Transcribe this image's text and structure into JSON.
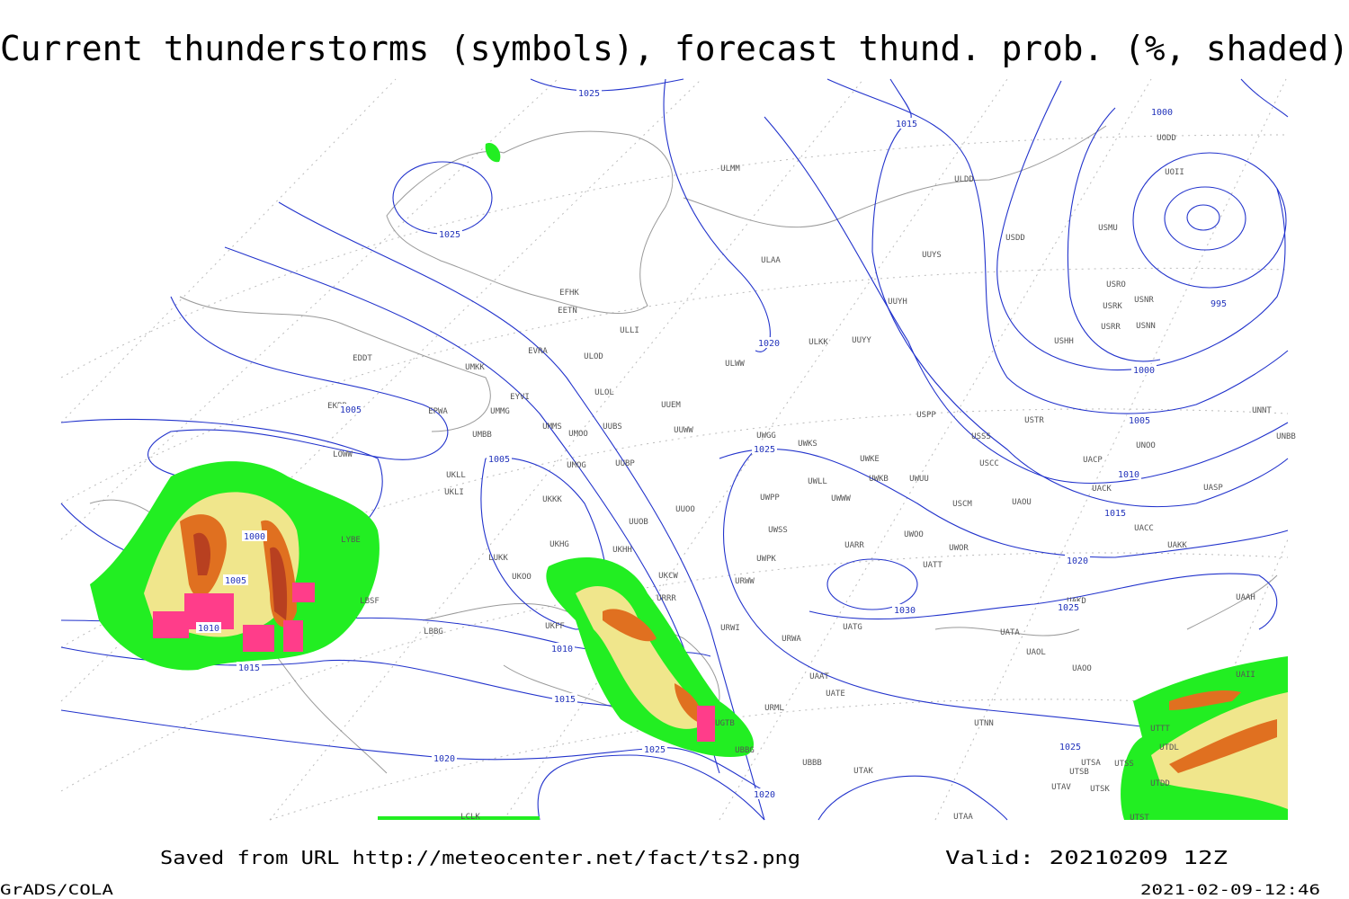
{
  "header": {
    "title": "Current thunderstorms (symbols), forecast thund. prob. (%, shaded)"
  },
  "isobar_labels": [
    "1025",
    "1015",
    "1000",
    "1025",
    "995",
    "1020",
    "1000",
    "1005",
    "1005",
    "1025",
    "1005",
    "1010",
    "1015",
    "1000",
    "1005",
    "1010",
    "1020",
    "1030",
    "1025",
    "1015",
    "1010",
    "1015",
    "1025",
    "1025",
    "1020",
    "1020"
  ],
  "stations": [
    "ULMM",
    "ULDD",
    "UOII",
    "UODD",
    "USDD",
    "USMU",
    "UUYS",
    "ULAA",
    "USRO",
    "USRK",
    "USNR",
    "UUYH",
    "EFHK",
    "EETN",
    "ULLI",
    "USRR",
    "USNN",
    "USHH",
    "ULKK",
    "UUYY",
    "EVRA",
    "ULOD",
    "EDDT",
    "UMKK",
    "ULWW",
    "ULOL",
    "EYVI",
    "UUEM",
    "EKBB",
    "EPWA",
    "UMMG",
    "USPP",
    "USTR",
    "UNNT",
    "UMMS",
    "UMOO",
    "UUBS",
    "UUWW",
    "UWGG",
    "USSS",
    "UNOO",
    "UNBB",
    "UMBB",
    "UWKS",
    "LOWW",
    "UKLL",
    "UMOG",
    "UUBP",
    "UWKE",
    "USCC",
    "UACP",
    "UKLI",
    "UWKB",
    "UWUU",
    "UWLL",
    "UACK",
    "UASP",
    "UKKK",
    "UWPP",
    "UWWW",
    "USCM",
    "UAOU",
    "UUOO",
    "UUOB",
    "UWSS",
    "UACC",
    "LYBE",
    "UKHG",
    "UKHH",
    "UARR",
    "UWOO",
    "UWOR",
    "UAKK",
    "LUKK",
    "UWPK",
    "UKOO",
    "UKCW",
    "URWW",
    "UATT",
    "LBSF",
    "URRR",
    "UAKD",
    "UAAH",
    "UKFF",
    "URWI",
    "UATG",
    "UATA",
    "LBBG",
    "UAOL",
    "URWA",
    "UAOO",
    "UATE",
    "UAAT",
    "URML",
    "UTNN",
    "UGTB",
    "UBBG",
    "UBBB",
    "UTAK",
    "UTSA",
    "UTSB",
    "UTAV",
    "UTSK",
    "UTSS",
    "UTAA",
    "LCLK",
    "UTST",
    "UTDD",
    "UTDL",
    "UTTT",
    "UAII"
  ],
  "footer": {
    "saved_from": "Saved from URL http://meteocenter.net/fact/ts2.png",
    "valid": "Valid: 20210209 12Z",
    "software": "GrADS/COLA",
    "timestamp": "2021-02-09-12:46"
  }
}
